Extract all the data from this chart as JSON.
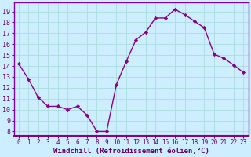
{
  "x": [
    0,
    1,
    2,
    3,
    4,
    5,
    6,
    7,
    8,
    9,
    10,
    11,
    12,
    13,
    14,
    15,
    16,
    17,
    18,
    19,
    20,
    21,
    22,
    23
  ],
  "y": [
    14.2,
    12.8,
    11.1,
    10.3,
    10.3,
    10.0,
    10.3,
    9.5,
    8.0,
    8.0,
    12.3,
    14.4,
    16.4,
    17.1,
    18.4,
    18.4,
    19.2,
    18.7,
    18.1,
    17.5,
    15.1,
    14.7,
    14.1,
    13.4
  ],
  "line_color": "#880088",
  "marker": "D",
  "markersize": 2.2,
  "linewidth": 1.0,
  "bg_color": "#cceeff",
  "grid_color": "#aadddd",
  "xlabel": "Windchill (Refroidissement éolien,°C)",
  "xlabel_fontsize": 6.5,
  "ylabel_ticks": [
    8,
    9,
    10,
    11,
    12,
    13,
    14,
    15,
    16,
    17,
    18,
    19
  ],
  "xlim": [
    -0.5,
    23.5
  ],
  "ylim": [
    7.6,
    19.8
  ],
  "xtick_fontsize": 5.5,
  "ytick_fontsize": 6.0,
  "spine_color": "#8800aa",
  "axis_color": "#7700aa"
}
